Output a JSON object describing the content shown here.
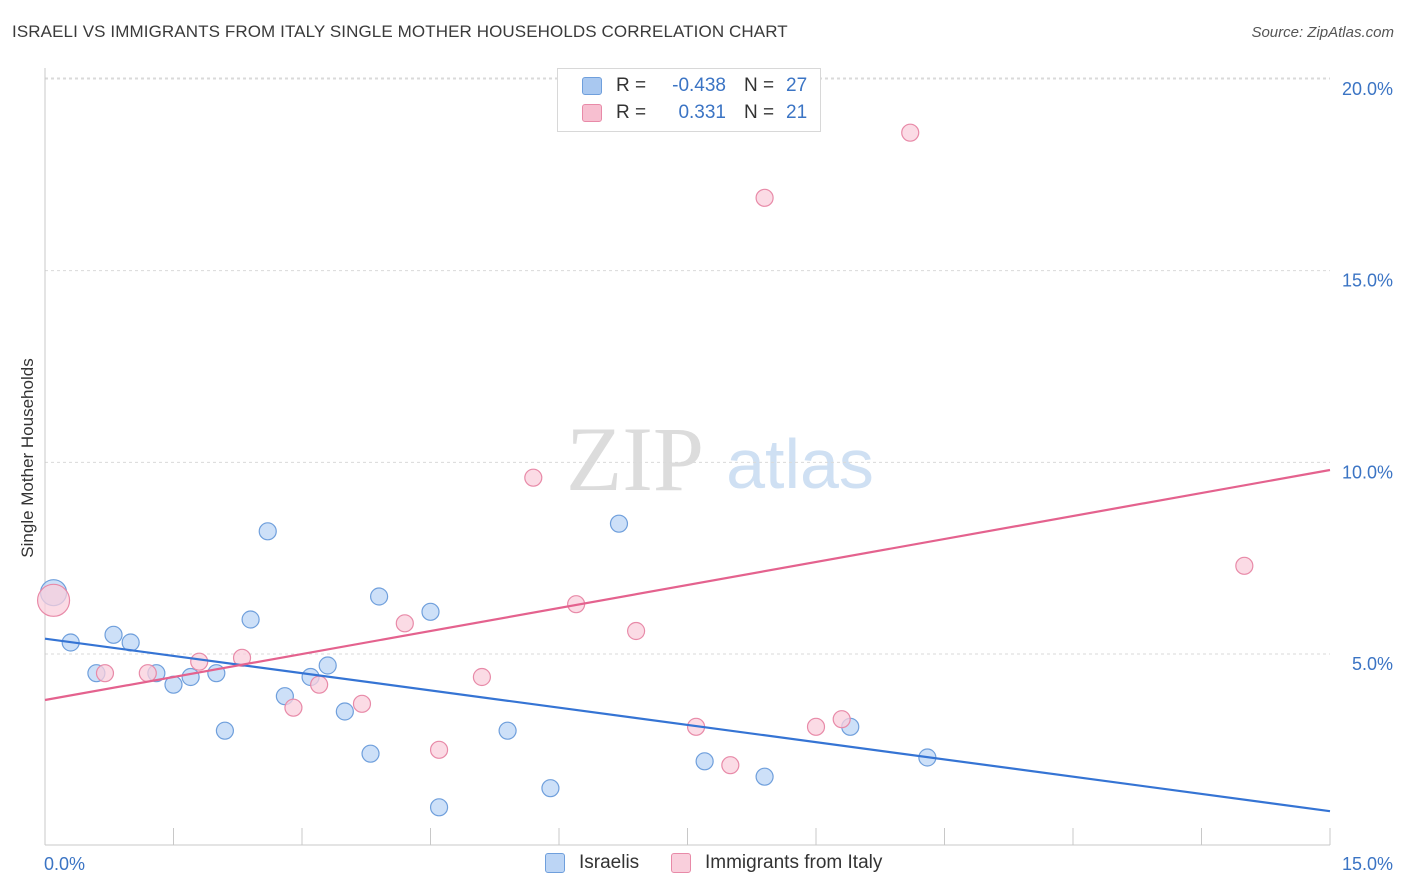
{
  "header": {
    "title": "ISRAELI VS IMMIGRANTS FROM ITALY SINGLE MOTHER HOUSEHOLDS CORRELATION CHART",
    "source": "Source: ZipAtlas.com"
  },
  "watermark": {
    "zip": "ZIP",
    "atlas": "atlas"
  },
  "legend_top": {
    "rows": [
      {
        "r_label": "R =",
        "r_value": "-0.438",
        "n_label": "N =",
        "n_value": "27",
        "color": "#a9c8f0",
        "border": "#6f9fdc"
      },
      {
        "r_label": "R =",
        "r_value": "0.331",
        "n_label": "N =",
        "n_value": "21",
        "color": "#f7bfd0",
        "border": "#e88aa8"
      }
    ]
  },
  "legend_bottom": [
    {
      "label": "Israelis",
      "color": "#bcd5f5",
      "border": "#6f9fdc"
    },
    {
      "label": "Immigrants from Italy",
      "color": "#f9cfdc",
      "border": "#e88aa8"
    }
  ],
  "chart_data": {
    "type": "scatter",
    "title": "ISRAELI VS IMMIGRANTS FROM ITALY SINGLE MOTHER HOUSEHOLDS CORRELATION CHART",
    "xlabel": "",
    "ylabel": "Single Mother Households",
    "xlim": [
      0,
      15
    ],
    "ylim": [
      0,
      20.5
    ],
    "x_tick_labels": [
      {
        "value": 0,
        "label": "0.0%"
      },
      {
        "value": 15,
        "label": "15.0%"
      }
    ],
    "y_tick_labels": [
      {
        "value": 5,
        "label": "5.0%"
      },
      {
        "value": 10,
        "label": "10.0%"
      },
      {
        "value": 15,
        "label": "15.0%"
      },
      {
        "value": 20,
        "label": "20.0%"
      }
    ],
    "x_minor_ticks": [
      1.5,
      3,
      4.5,
      6,
      7.5,
      9,
      10.5,
      12,
      13.5,
      15
    ],
    "grid": true,
    "series": [
      {
        "name": "Israelis",
        "color": "#6f9fdc",
        "fill": "#bcd5f5",
        "trend": {
          "x": [
            0,
            15
          ],
          "y": [
            5.4,
            0.9
          ],
          "color": "#3574d4"
        },
        "points": [
          {
            "x": 0.1,
            "y": 6.6,
            "size": 13
          },
          {
            "x": 0.3,
            "y": 5.3
          },
          {
            "x": 0.6,
            "y": 4.5
          },
          {
            "x": 0.8,
            "y": 5.5
          },
          {
            "x": 1.0,
            "y": 5.3
          },
          {
            "x": 1.3,
            "y": 4.5
          },
          {
            "x": 1.5,
            "y": 4.2
          },
          {
            "x": 1.7,
            "y": 4.4
          },
          {
            "x": 2.0,
            "y": 4.5
          },
          {
            "x": 2.1,
            "y": 3.0
          },
          {
            "x": 2.4,
            "y": 5.9
          },
          {
            "x": 2.6,
            "y": 8.2
          },
          {
            "x": 2.8,
            "y": 3.9
          },
          {
            "x": 3.1,
            "y": 4.4
          },
          {
            "x": 3.3,
            "y": 4.7
          },
          {
            "x": 3.5,
            "y": 3.5
          },
          {
            "x": 3.8,
            "y": 2.4
          },
          {
            "x": 3.9,
            "y": 6.5
          },
          {
            "x": 4.5,
            "y": 6.1
          },
          {
            "x": 4.6,
            "y": 1.0
          },
          {
            "x": 5.4,
            "y": 3.0
          },
          {
            "x": 5.9,
            "y": 1.5
          },
          {
            "x": 6.7,
            "y": 8.4
          },
          {
            "x": 7.7,
            "y": 2.2
          },
          {
            "x": 8.4,
            "y": 1.8
          },
          {
            "x": 9.4,
            "y": 3.1
          },
          {
            "x": 10.3,
            "y": 2.3
          }
        ]
      },
      {
        "name": "Immigrants from Italy",
        "color": "#e88aa8",
        "fill": "#f9cfdc",
        "trend": {
          "x": [
            0,
            15
          ],
          "y": [
            3.8,
            9.8
          ],
          "color": "#e4628e"
        },
        "points": [
          {
            "x": 0.1,
            "y": 6.4,
            "size": 16
          },
          {
            "x": 0.7,
            "y": 4.5
          },
          {
            "x": 1.2,
            "y": 4.5
          },
          {
            "x": 1.8,
            "y": 4.8
          },
          {
            "x": 2.3,
            "y": 4.9
          },
          {
            "x": 2.9,
            "y": 3.6
          },
          {
            "x": 3.2,
            "y": 4.2
          },
          {
            "x": 3.7,
            "y": 3.7
          },
          {
            "x": 4.2,
            "y": 5.8
          },
          {
            "x": 4.6,
            "y": 2.5
          },
          {
            "x": 5.1,
            "y": 4.4
          },
          {
            "x": 5.7,
            "y": 9.6
          },
          {
            "x": 6.2,
            "y": 6.3
          },
          {
            "x": 6.9,
            "y": 5.6
          },
          {
            "x": 7.6,
            "y": 3.1
          },
          {
            "x": 8.0,
            "y": 2.1
          },
          {
            "x": 8.4,
            "y": 16.9
          },
          {
            "x": 9.0,
            "y": 3.1
          },
          {
            "x": 9.3,
            "y": 3.3
          },
          {
            "x": 10.1,
            "y": 18.6
          },
          {
            "x": 14.0,
            "y": 7.3
          }
        ]
      }
    ]
  }
}
